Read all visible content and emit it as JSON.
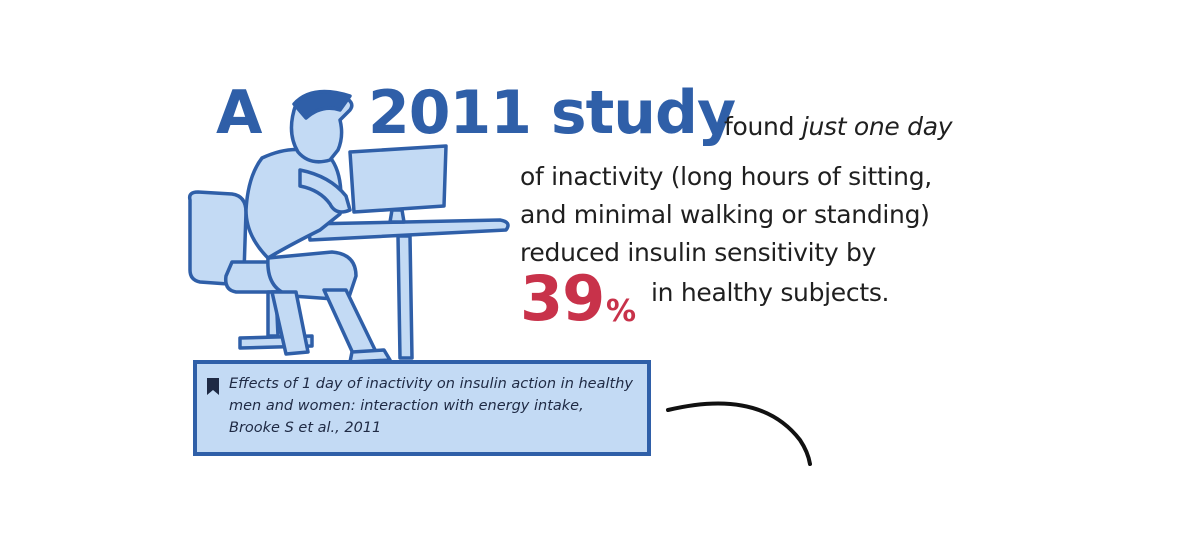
{
  "headline": {
    "a": "A",
    "year_study": "2011 study"
  },
  "body": {
    "line1_prefix": "found ",
    "line1_emphasis": "just one day",
    "line2": "of inactivity (long hours of sitting,",
    "line3": "and minimal walking or standing)",
    "line4": "reduced insulin sensitivity by",
    "stat_number": "39",
    "stat_symbol": "%",
    "line5": "in healthy subjects."
  },
  "citation": {
    "line1": "Effects of 1 day of inactivity on insulin action in healthy",
    "line2": "men and women: interaction with energy intake,",
    "line3": "Brooke S et al., 2011"
  },
  "colors": {
    "brand_blue": "#2f5fa8",
    "light_blue": "#c3daf4",
    "accent_red": "#c8324a",
    "text_dark": "#1f1f1f"
  },
  "icons": [
    "person-at-desk-illustration",
    "bookmark-icon",
    "curved-arrow-line"
  ]
}
